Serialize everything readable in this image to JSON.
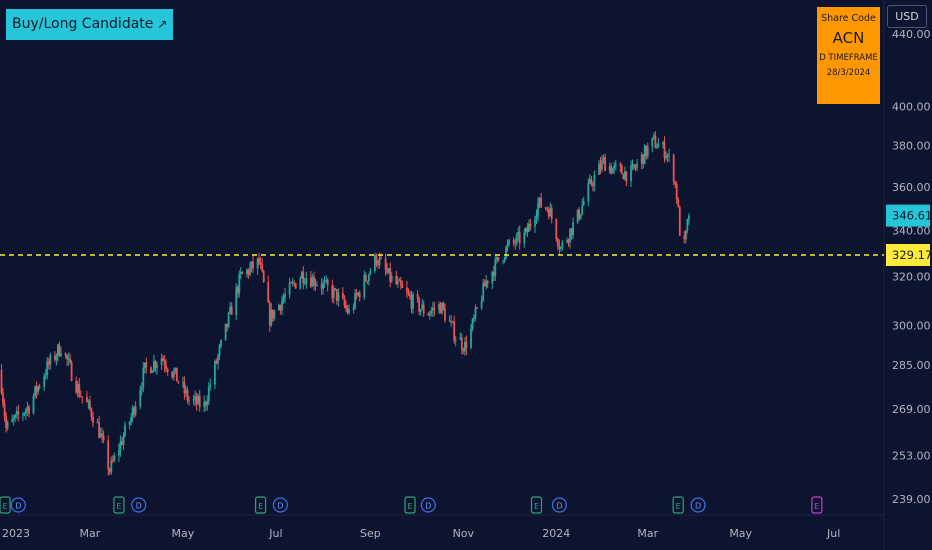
{
  "signal_label": "Buy/Long Candidate",
  "info_box": {
    "title": "Share Code",
    "symbol": "ACN",
    "timeframe": "D TIMEFRAME",
    "date": "28/3/2024"
  },
  "currency_button": "USD",
  "colors": {
    "background": "#0c1430",
    "up": "#26a69a",
    "down": "#ef5350",
    "support": "#ffeb3b",
    "price_tag": "#26c6da",
    "info_box": "#ff9800"
  },
  "chart_data": {
    "type": "candlestick",
    "title": "",
    "xlabel": "",
    "ylabel": "",
    "y_axis": {
      "scale": "log",
      "ticks": [
        440,
        400,
        380,
        360,
        340,
        320,
        300,
        285,
        269,
        253,
        239
      ],
      "tick_labels": [
        "440.00",
        "400.00",
        "380.00",
        "360.00",
        "340.00",
        "320.00",
        "300.00",
        "285.00",
        "269.00",
        "253.00",
        "239.00"
      ],
      "range": [
        234,
        460
      ]
    },
    "x_axis": {
      "labels": [
        "2023",
        "Mar",
        "May",
        "Jul",
        "Sep",
        "Nov",
        "2024",
        "Mar",
        "May",
        "Jul"
      ],
      "range": [
        "2023-01-01",
        "2024-08-03"
      ]
    },
    "current_price": 346.61,
    "current_price_label": "346.61",
    "support_level": 329.17,
    "support_label": "329.17",
    "price_path": [
      [
        "2023-01-01",
        283
      ],
      [
        "2023-01-05",
        262
      ],
      [
        "2023-01-20",
        270
      ],
      [
        "2023-02-01",
        284
      ],
      [
        "2023-02-10",
        292
      ],
      [
        "2023-02-22",
        275
      ],
      [
        "2023-03-05",
        265
      ],
      [
        "2023-03-14",
        248
      ],
      [
        "2023-03-28",
        266
      ],
      [
        "2023-04-06",
        283
      ],
      [
        "2023-04-17",
        288
      ],
      [
        "2023-04-27",
        280
      ],
      [
        "2023-05-05",
        272
      ],
      [
        "2023-05-15",
        270
      ],
      [
        "2023-05-29",
        298
      ],
      [
        "2023-06-08",
        320
      ],
      [
        "2023-06-20",
        326
      ],
      [
        "2023-06-27",
        303
      ],
      [
        "2023-07-06",
        311
      ],
      [
        "2023-07-18",
        321
      ],
      [
        "2023-07-28",
        318
      ],
      [
        "2023-08-10",
        312
      ],
      [
        "2023-08-18",
        305
      ],
      [
        "2023-08-28",
        318
      ],
      [
        "2023-09-05",
        328
      ],
      [
        "2023-09-13",
        320
      ],
      [
        "2023-09-28",
        310
      ],
      [
        "2023-10-08",
        305
      ],
      [
        "2023-10-17",
        308
      ],
      [
        "2023-10-27",
        296
      ],
      [
        "2023-11-02",
        292
      ],
      [
        "2023-11-06",
        298
      ],
      [
        "2023-11-16",
        318
      ],
      [
        "2023-11-25",
        328
      ],
      [
        "2023-12-01",
        333
      ],
      [
        "2023-12-12",
        338
      ],
      [
        "2023-12-20",
        352
      ],
      [
        "2023-12-27",
        350
      ],
      [
        "2024-01-04",
        332
      ],
      [
        "2024-01-15",
        346
      ],
      [
        "2024-01-24",
        362
      ],
      [
        "2024-02-01",
        372
      ],
      [
        "2024-02-08",
        368
      ],
      [
        "2024-02-19",
        366
      ],
      [
        "2024-02-28",
        376
      ],
      [
        "2024-03-05",
        382
      ],
      [
        "2024-03-13",
        377
      ],
      [
        "2024-03-18",
        366
      ],
      [
        "2024-03-20",
        356
      ],
      [
        "2024-03-22",
        340
      ],
      [
        "2024-03-25",
        333
      ],
      [
        "2024-03-28",
        346.6
      ]
    ],
    "event_markers": [
      {
        "type": "E",
        "date": "2023-01-01"
      },
      {
        "type": "D",
        "date": "2023-01-13"
      },
      {
        "type": "E",
        "date": "2023-03-20"
      },
      {
        "type": "D",
        "date": "2023-04-02"
      },
      {
        "type": "E",
        "date": "2023-06-21"
      },
      {
        "type": "D",
        "date": "2023-07-04"
      },
      {
        "type": "E",
        "date": "2023-09-27"
      },
      {
        "type": "D",
        "date": "2023-10-09"
      },
      {
        "type": "E",
        "date": "2023-12-19"
      },
      {
        "type": "D",
        "date": "2024-01-03"
      },
      {
        "type": "E",
        "date": "2024-03-21"
      },
      {
        "type": "D",
        "date": "2024-04-03"
      },
      {
        "type": "E",
        "date": "2024-06-20",
        "highlight": true
      }
    ]
  }
}
